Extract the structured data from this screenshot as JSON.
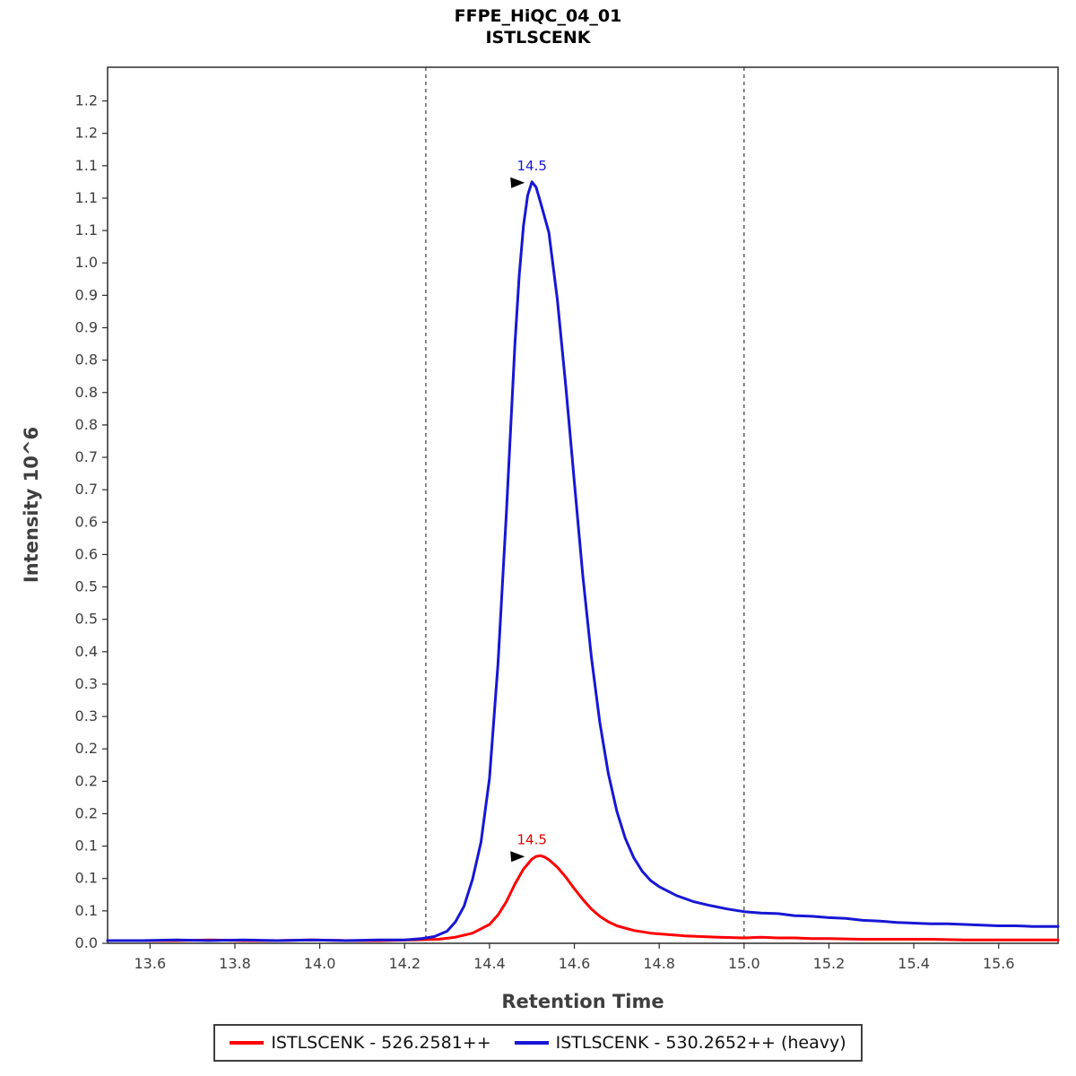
{
  "header": {
    "title": "FFPE_HiQC_04_01",
    "subtitle": "ISTLSCENK"
  },
  "axes": {
    "x_title": "Retention Time",
    "y_title": "Intensity 10^6",
    "x_tick_labels": [
      "13.6",
      "13.8",
      "14.0",
      "14.2",
      "14.4",
      "14.6",
      "14.8",
      "15.0",
      "15.2",
      "15.4",
      "15.6"
    ],
    "x_tick_values": [
      13.6,
      13.8,
      14.0,
      14.2,
      14.4,
      14.6,
      14.8,
      15.0,
      15.2,
      15.4,
      15.6
    ],
    "y_tick_labels_bottom_to_top": [
      "0.0",
      "0.1",
      "0.1",
      "0.1",
      "0.2",
      "0.2",
      "0.2",
      "0.3",
      "0.3",
      "0.4",
      "0.5",
      "0.5",
      "0.6",
      "0.6",
      "0.7",
      "0.7",
      "0.8",
      "0.8",
      "0.8",
      "0.9",
      "0.9",
      "1.0",
      "1.1",
      "1.1",
      "1.1",
      "1.2",
      "1.2"
    ],
    "y_tick_top_value": 1.25
  },
  "chart_data": {
    "type": "line",
    "title": "FFPE_HiQC_04_01",
    "subtitle": "ISTLSCENK",
    "xlabel": "Retention Time",
    "ylabel": "Intensity 10^6",
    "xlim": [
      13.5,
      15.74
    ],
    "ylim": [
      0,
      1.3
    ],
    "grid": false,
    "legend_position": "bottom",
    "integration_boundaries": [
      14.25,
      15.0
    ],
    "boundary_color": "#4a4a4a",
    "annotations": [
      {
        "label": "14.5",
        "x": 14.5,
        "y": 0.13,
        "color": "#e00000"
      },
      {
        "label": "14.5",
        "x": 14.5,
        "y": 1.13,
        "color": "#1717d4"
      }
    ],
    "series": [
      {
        "name": "ISTLSCENK - 526.2581++",
        "color": "#ff0000",
        "peak_rt": 14.5,
        "peak_height_e6": 0.13,
        "points": [
          [
            13.5,
            0.004
          ],
          [
            13.58,
            0.004
          ],
          [
            13.66,
            0.004
          ],
          [
            13.74,
            0.005
          ],
          [
            13.82,
            0.004
          ],
          [
            13.9,
            0.004
          ],
          [
            13.98,
            0.005
          ],
          [
            14.06,
            0.004
          ],
          [
            14.14,
            0.004
          ],
          [
            14.22,
            0.005
          ],
          [
            14.28,
            0.006
          ],
          [
            14.32,
            0.009
          ],
          [
            14.36,
            0.015
          ],
          [
            14.4,
            0.028
          ],
          [
            14.42,
            0.042
          ],
          [
            14.44,
            0.062
          ],
          [
            14.46,
            0.088
          ],
          [
            14.48,
            0.11
          ],
          [
            14.5,
            0.125
          ],
          [
            14.51,
            0.129
          ],
          [
            14.52,
            0.13
          ],
          [
            14.53,
            0.128
          ],
          [
            14.54,
            0.124
          ],
          [
            14.56,
            0.113
          ],
          [
            14.58,
            0.098
          ],
          [
            14.6,
            0.081
          ],
          [
            14.62,
            0.065
          ],
          [
            14.64,
            0.051
          ],
          [
            14.66,
            0.04
          ],
          [
            14.68,
            0.032
          ],
          [
            14.7,
            0.026
          ],
          [
            14.74,
            0.019
          ],
          [
            14.78,
            0.015
          ],
          [
            14.82,
            0.013
          ],
          [
            14.86,
            0.011
          ],
          [
            14.9,
            0.01
          ],
          [
            14.94,
            0.009
          ],
          [
            15.0,
            0.008
          ],
          [
            15.04,
            0.009
          ],
          [
            15.08,
            0.008
          ],
          [
            15.12,
            0.008
          ],
          [
            15.16,
            0.007
          ],
          [
            15.2,
            0.007
          ],
          [
            15.28,
            0.006
          ],
          [
            15.36,
            0.006
          ],
          [
            15.44,
            0.006
          ],
          [
            15.52,
            0.005
          ],
          [
            15.6,
            0.005
          ],
          [
            15.68,
            0.005
          ],
          [
            15.74,
            0.005
          ]
        ]
      },
      {
        "name": "ISTLSCENK - 530.2652++ (heavy)",
        "color": "#1717d4",
        "peak_rt": 14.5,
        "peak_height_e6": 1.13,
        "points": [
          [
            13.5,
            0.004
          ],
          [
            13.58,
            0.004
          ],
          [
            13.66,
            0.005
          ],
          [
            13.74,
            0.004
          ],
          [
            13.82,
            0.005
          ],
          [
            13.9,
            0.004
          ],
          [
            13.98,
            0.005
          ],
          [
            14.06,
            0.004
          ],
          [
            14.14,
            0.005
          ],
          [
            14.2,
            0.005
          ],
          [
            14.24,
            0.007
          ],
          [
            14.27,
            0.01
          ],
          [
            14.3,
            0.018
          ],
          [
            14.32,
            0.032
          ],
          [
            14.34,
            0.055
          ],
          [
            14.36,
            0.095
          ],
          [
            14.38,
            0.15
          ],
          [
            14.4,
            0.245
          ],
          [
            14.42,
            0.415
          ],
          [
            14.44,
            0.64
          ],
          [
            14.46,
            0.89
          ],
          [
            14.47,
            0.99
          ],
          [
            14.48,
            1.065
          ],
          [
            14.49,
            1.11
          ],
          [
            14.5,
            1.13
          ],
          [
            14.51,
            1.122
          ],
          [
            14.52,
            1.1
          ],
          [
            14.54,
            1.055
          ],
          [
            14.56,
            0.955
          ],
          [
            14.58,
            0.825
          ],
          [
            14.6,
            0.685
          ],
          [
            14.62,
            0.545
          ],
          [
            14.64,
            0.425
          ],
          [
            14.66,
            0.328
          ],
          [
            14.68,
            0.252
          ],
          [
            14.7,
            0.196
          ],
          [
            14.72,
            0.156
          ],
          [
            14.74,
            0.127
          ],
          [
            14.76,
            0.107
          ],
          [
            14.78,
            0.093
          ],
          [
            14.8,
            0.084
          ],
          [
            14.84,
            0.071
          ],
          [
            14.88,
            0.062
          ],
          [
            14.92,
            0.056
          ],
          [
            14.96,
            0.051
          ],
          [
            15.0,
            0.047
          ],
          [
            15.04,
            0.045
          ],
          [
            15.08,
            0.044
          ],
          [
            15.12,
            0.041
          ],
          [
            15.16,
            0.04
          ],
          [
            15.2,
            0.038
          ],
          [
            15.24,
            0.037
          ],
          [
            15.28,
            0.034
          ],
          [
            15.32,
            0.033
          ],
          [
            15.36,
            0.031
          ],
          [
            15.4,
            0.03
          ],
          [
            15.44,
            0.029
          ],
          [
            15.48,
            0.029
          ],
          [
            15.52,
            0.028
          ],
          [
            15.56,
            0.027
          ],
          [
            15.6,
            0.026
          ],
          [
            15.64,
            0.026
          ],
          [
            15.68,
            0.025
          ],
          [
            15.74,
            0.025
          ]
        ]
      }
    ]
  },
  "legend": {
    "items": [
      {
        "label": "ISTLSCENK - 526.2581++",
        "color": "#ff0000"
      },
      {
        "label": "ISTLSCENK - 530.2652++ (heavy)",
        "color": "#1717d4"
      }
    ]
  }
}
